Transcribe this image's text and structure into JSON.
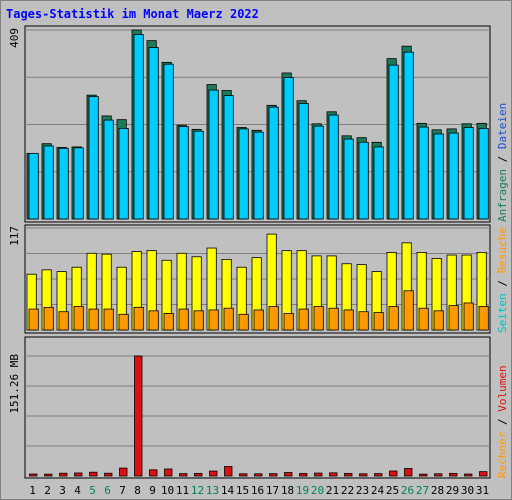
{
  "chart_data": {
    "type": "bar",
    "title": "Tages-Statistik im Monat Maerz 2022",
    "x": [
      "1",
      "2",
      "3",
      "4",
      "5",
      "6",
      "7",
      "8",
      "9",
      "10",
      "11",
      "12",
      "13",
      "14",
      "15",
      "16",
      "17",
      "18",
      "19",
      "20",
      "21",
      "22",
      "23",
      "24",
      "25",
      "26",
      "27",
      "28",
      "29",
      "30",
      "31"
    ],
    "weekend_days": [
      "5",
      "6",
      "12",
      "13",
      "19",
      "20",
      "26",
      "27"
    ],
    "panels": [
      {
        "id": "top",
        "y_max_label": "409",
        "ylim": [
          0,
          409
        ],
        "series": [
          {
            "name": "Anfragen",
            "color": "#1b7a5c",
            "values": [
              142,
              163,
              155,
              156,
              268,
              223,
              215,
              409,
              386,
              339,
              203,
              194,
              291,
              278,
              198,
              192,
              246,
              316,
              256,
              206,
              232,
              180,
              176,
              166,
              347,
              374,
              207,
              193,
              195,
              206,
              207
            ]
          },
          {
            "name": "Dateien",
            "color": "#00ccff",
            "values": [
              142,
              158,
              153,
              154,
              265,
              214,
              196,
              399,
              371,
              335,
              200,
              190,
              279,
              267,
              195,
              188,
              242,
              306,
              250,
              201,
              225,
              173,
              166,
              156,
              333,
              361,
              199,
              184,
              186,
              198,
              196
            ]
          }
        ],
        "legend_right": [
          {
            "name": "Anfragen",
            "color": "#1b7a5c"
          },
          {
            "name": "Dateien",
            "color": "#1f4fd6"
          }
        ]
      },
      {
        "id": "middle",
        "y_max_label": "117",
        "ylim": [
          0,
          117
        ],
        "series": [
          {
            "name": "Seiten",
            "color": "#ffff00",
            "values": [
              64,
              69,
              67,
              72,
              88,
              87,
              72,
              90,
              91,
              80,
              88,
              84,
              94,
              81,
              72,
              83,
              110,
              91,
              91,
              85,
              85,
              76,
              75,
              67,
              89,
              100,
              89,
              82,
              86,
              86,
              89
            ]
          },
          {
            "name": "Besuche",
            "color": "#ff9900",
            "values": [
              24,
              26,
              21,
              27,
              24,
              24,
              18,
              26,
              22,
              19,
              24,
              22,
              23,
              25,
              18,
              23,
              27,
              19,
              24,
              27,
              25,
              23,
              21,
              20,
              27,
              45,
              25,
              22,
              28,
              31,
              27
            ]
          }
        ],
        "legend_right": [
          {
            "name": "Seiten",
            "color": "#00bfbf"
          },
          {
            "name": "Besuche",
            "color": "#ff9900"
          }
        ]
      },
      {
        "id": "bottom",
        "y_max_label": "151.26 MB",
        "ylim": [
          0,
          151.26
        ],
        "series": [
          {
            "name": "Volumen",
            "color": "#dd1111",
            "values": [
              2.5,
              2.3,
              3.5,
              3.8,
              4.8,
              3.5,
              10,
              151.26,
              7.8,
              8.8,
              3.0,
              3.3,
              6.2,
              12,
              2.8,
              2.8,
              3.0,
              4.4,
              3.2,
              3.7,
              4.0,
              3.3,
              2.8,
              3.0,
              6.3,
              9.5,
              2.3,
              2.8,
              3.3,
              2.5,
              5.5
            ]
          }
        ],
        "legend_right": [
          {
            "name": "Rechner",
            "color": "#ff9900"
          },
          {
            "name": "Volumen",
            "color": "#dd1111"
          }
        ]
      }
    ]
  },
  "colors": {
    "background": "#c0c0c0",
    "title": "#0000ff",
    "weekend_label": "#00805a",
    "weekday_label": "#000000",
    "border": "#000000",
    "gridline": "#808080"
  }
}
